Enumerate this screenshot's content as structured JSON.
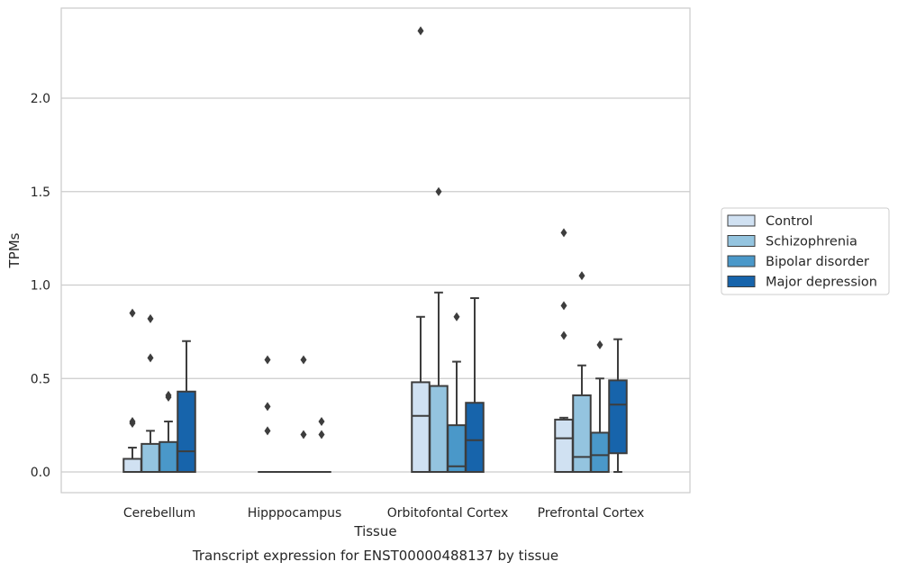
{
  "chart_data": {
    "type": "box",
    "caption": "Transcript expression for ENST00000488137 by tissue",
    "xlabel": "Tissue",
    "ylabel": "TPMs",
    "ylim": [
      -0.11,
      2.48
    ],
    "yticks": [
      0.0,
      0.5,
      1.0,
      1.5,
      2.0
    ],
    "ytick_labels": [
      "0.0",
      "0.5",
      "1.0",
      "1.5",
      "2.0"
    ],
    "grid": "horizontal",
    "legend_position": "right",
    "categories": [
      "Cerebellum",
      "Hipppocampus",
      "Orbitofontal Cortex",
      "Prefrontal Cortex"
    ],
    "series": [
      {
        "name": "Control",
        "color": "#d0e1f2",
        "boxes": [
          {
            "whislo": 0.0,
            "q1": 0.0,
            "med": 0.0,
            "q3": 0.07,
            "whishi": 0.13,
            "fliers": [
              0.26,
              0.27,
              0.85
            ]
          },
          {
            "whislo": 0.0,
            "q1": 0.0,
            "med": 0.0,
            "q3": 0.0,
            "whishi": 0.0,
            "fliers": [
              0.22,
              0.35,
              0.6
            ]
          },
          {
            "whislo": 0.0,
            "q1": 0.0,
            "med": 0.3,
            "q3": 0.48,
            "whishi": 0.83,
            "fliers": [
              2.36
            ]
          },
          {
            "whislo": 0.0,
            "q1": 0.0,
            "med": 0.18,
            "q3": 0.28,
            "whishi": 0.29,
            "fliers": [
              0.73,
              0.89,
              1.28
            ]
          }
        ]
      },
      {
        "name": "Schizophrenia",
        "color": "#94c4df",
        "boxes": [
          {
            "whislo": 0.0,
            "q1": 0.0,
            "med": 0.0,
            "q3": 0.15,
            "whishi": 0.22,
            "fliers": [
              0.61,
              0.82
            ]
          },
          {
            "whislo": 0.0,
            "q1": 0.0,
            "med": 0.0,
            "q3": 0.0,
            "whishi": 0.0,
            "fliers": []
          },
          {
            "whislo": 0.0,
            "q1": 0.0,
            "med": 0.0,
            "q3": 0.46,
            "whishi": 0.96,
            "fliers": [
              1.5
            ]
          },
          {
            "whislo": 0.0,
            "q1": 0.0,
            "med": 0.08,
            "q3": 0.41,
            "whishi": 0.57,
            "fliers": [
              1.05
            ]
          }
        ]
      },
      {
        "name": "Bipolar disorder",
        "color": "#4a98c9",
        "boxes": [
          {
            "whislo": 0.0,
            "q1": 0.0,
            "med": 0.0,
            "q3": 0.16,
            "whishi": 0.27,
            "fliers": [
              0.4,
              0.41
            ]
          },
          {
            "whislo": 0.0,
            "q1": 0.0,
            "med": 0.0,
            "q3": 0.0,
            "whishi": 0.0,
            "fliers": [
              0.2,
              0.6
            ]
          },
          {
            "whislo": 0.0,
            "q1": 0.0,
            "med": 0.03,
            "q3": 0.25,
            "whishi": 0.59,
            "fliers": [
              0.83
            ]
          },
          {
            "whislo": 0.0,
            "q1": 0.0,
            "med": 0.09,
            "q3": 0.21,
            "whishi": 0.5,
            "fliers": [
              0.68
            ]
          }
        ]
      },
      {
        "name": "Major depression",
        "color": "#1764ab",
        "boxes": [
          {
            "whislo": 0.0,
            "q1": 0.0,
            "med": 0.11,
            "q3": 0.43,
            "whishi": 0.7,
            "fliers": []
          },
          {
            "whislo": 0.0,
            "q1": 0.0,
            "med": 0.0,
            "q3": 0.0,
            "whishi": 0.0,
            "fliers": [
              0.2,
              0.27
            ]
          },
          {
            "whislo": 0.0,
            "q1": 0.0,
            "med": 0.17,
            "q3": 0.37,
            "whishi": 0.93,
            "fliers": []
          },
          {
            "whislo": 0.0,
            "q1": 0.1,
            "med": 0.36,
            "q3": 0.49,
            "whishi": 0.71,
            "fliers": []
          }
        ]
      }
    ]
  }
}
